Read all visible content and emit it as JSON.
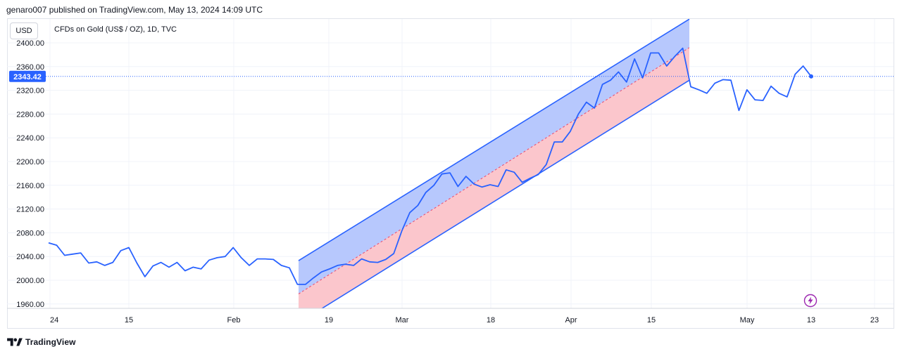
{
  "header": {
    "published_by": "genaro007 published on TradingView.com, May 13, 2024 14:09 UTC"
  },
  "toolbar": {
    "currency": "USD",
    "symbol": "CFDs on Gold (US$ / OZ), 1D, TVC"
  },
  "footer": {
    "brand": "TradingView"
  },
  "icons": {
    "logo": "tradingview-logo-icon",
    "flash": "flash-icon"
  },
  "colors": {
    "line": "#2962ff",
    "channel_upper_fill": "#b7c8fd",
    "channel_lower_fill": "#fbc6cc",
    "channel_line": "#2962ff",
    "midline": "#e84a6d",
    "price_label_bg": "#2962ff",
    "flash": "#9c27b0"
  },
  "chart_data": {
    "type": "line",
    "title": "CFDs on Gold (US$ / OZ), 1D, TVC",
    "xlabel": "",
    "ylabel": "",
    "ylim": [
      1952,
      2440
    ],
    "x_tick_labels": [
      "24",
      "15",
      "Feb",
      "19",
      "Mar",
      "18",
      "Apr",
      "15",
      "May",
      "13",
      "23"
    ],
    "y_tick_labels": [
      "2400.00",
      "2360.00",
      "2320.00",
      "2280.00",
      "2240.00",
      "2200.00",
      "2160.00",
      "2120.00",
      "2080.00",
      "2040.00",
      "2000.00",
      "1960.00"
    ],
    "last_price_label": "2343.42",
    "last_price": 2343.42,
    "grid": true,
    "series": [
      {
        "values": [
          2063,
          2059,
          2042,
          2044,
          2046,
          2029,
          2031,
          2025,
          2030,
          2050,
          2055,
          2029,
          2006,
          2024,
          2030,
          2022,
          2030,
          2016,
          2022,
          2019,
          2034,
          2038,
          2040,
          2055,
          2038,
          2025,
          2036,
          2036,
          2035,
          2025,
          2021,
          1993,
          1993,
          2004,
          2014,
          2019,
          2025,
          2027,
          2025,
          2036,
          2031,
          2030,
          2035,
          2045,
          2083,
          2114,
          2126,
          2148,
          2160,
          2179,
          2181,
          2158,
          2175,
          2162,
          2157,
          2161,
          2158,
          2186,
          2182,
          2165,
          2172,
          2178,
          2195,
          2233,
          2233,
          2251,
          2280,
          2300,
          2290,
          2330,
          2337,
          2351,
          2334,
          2373,
          2341,
          2383,
          2383,
          2361,
          2377,
          2391,
          2326,
          2321,
          2315,
          2332,
          2338,
          2337,
          2286,
          2321,
          2304,
          2303,
          2327,
          2315,
          2309,
          2347,
          2361,
          2343.42
        ]
      }
    ],
    "channel": {
      "upper_start": 2033,
      "upper_end": 2440,
      "mid_start": 1977,
      "mid_end": 2392,
      "lower_start": 1928,
      "lower_end": 2337
    }
  }
}
